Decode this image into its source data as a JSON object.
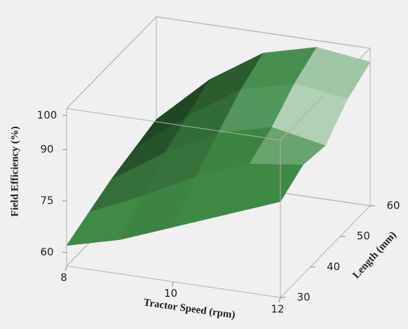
{
  "chart_data": {
    "type": "surface",
    "color": "#3f8a47",
    "xlabel": "Tractor Speed (rpm)",
    "ylabel": "Length (mm)",
    "zlabel": "Field Efficiency (%)",
    "x": [
      8,
      9,
      10,
      11,
      12
    ],
    "y": [
      30,
      37.5,
      45,
      52.5,
      60
    ],
    "z": [
      [
        62,
        66,
        72,
        78,
        84
      ],
      [
        65,
        72,
        80,
        86,
        88
      ],
      [
        68,
        78,
        86,
        90,
        87
      ],
      [
        70,
        82,
        92,
        96,
        94
      ],
      [
        72,
        86,
        96,
        100,
        98
      ]
    ],
    "xlim": [
      8,
      12
    ],
    "ylim": [
      30,
      60
    ],
    "zlim": [
      56,
      102
    ],
    "xticks": [
      8,
      10,
      12
    ],
    "yticks": [
      30,
      40,
      50,
      60
    ],
    "zticks": [
      60,
      75,
      90,
      100
    ]
  }
}
